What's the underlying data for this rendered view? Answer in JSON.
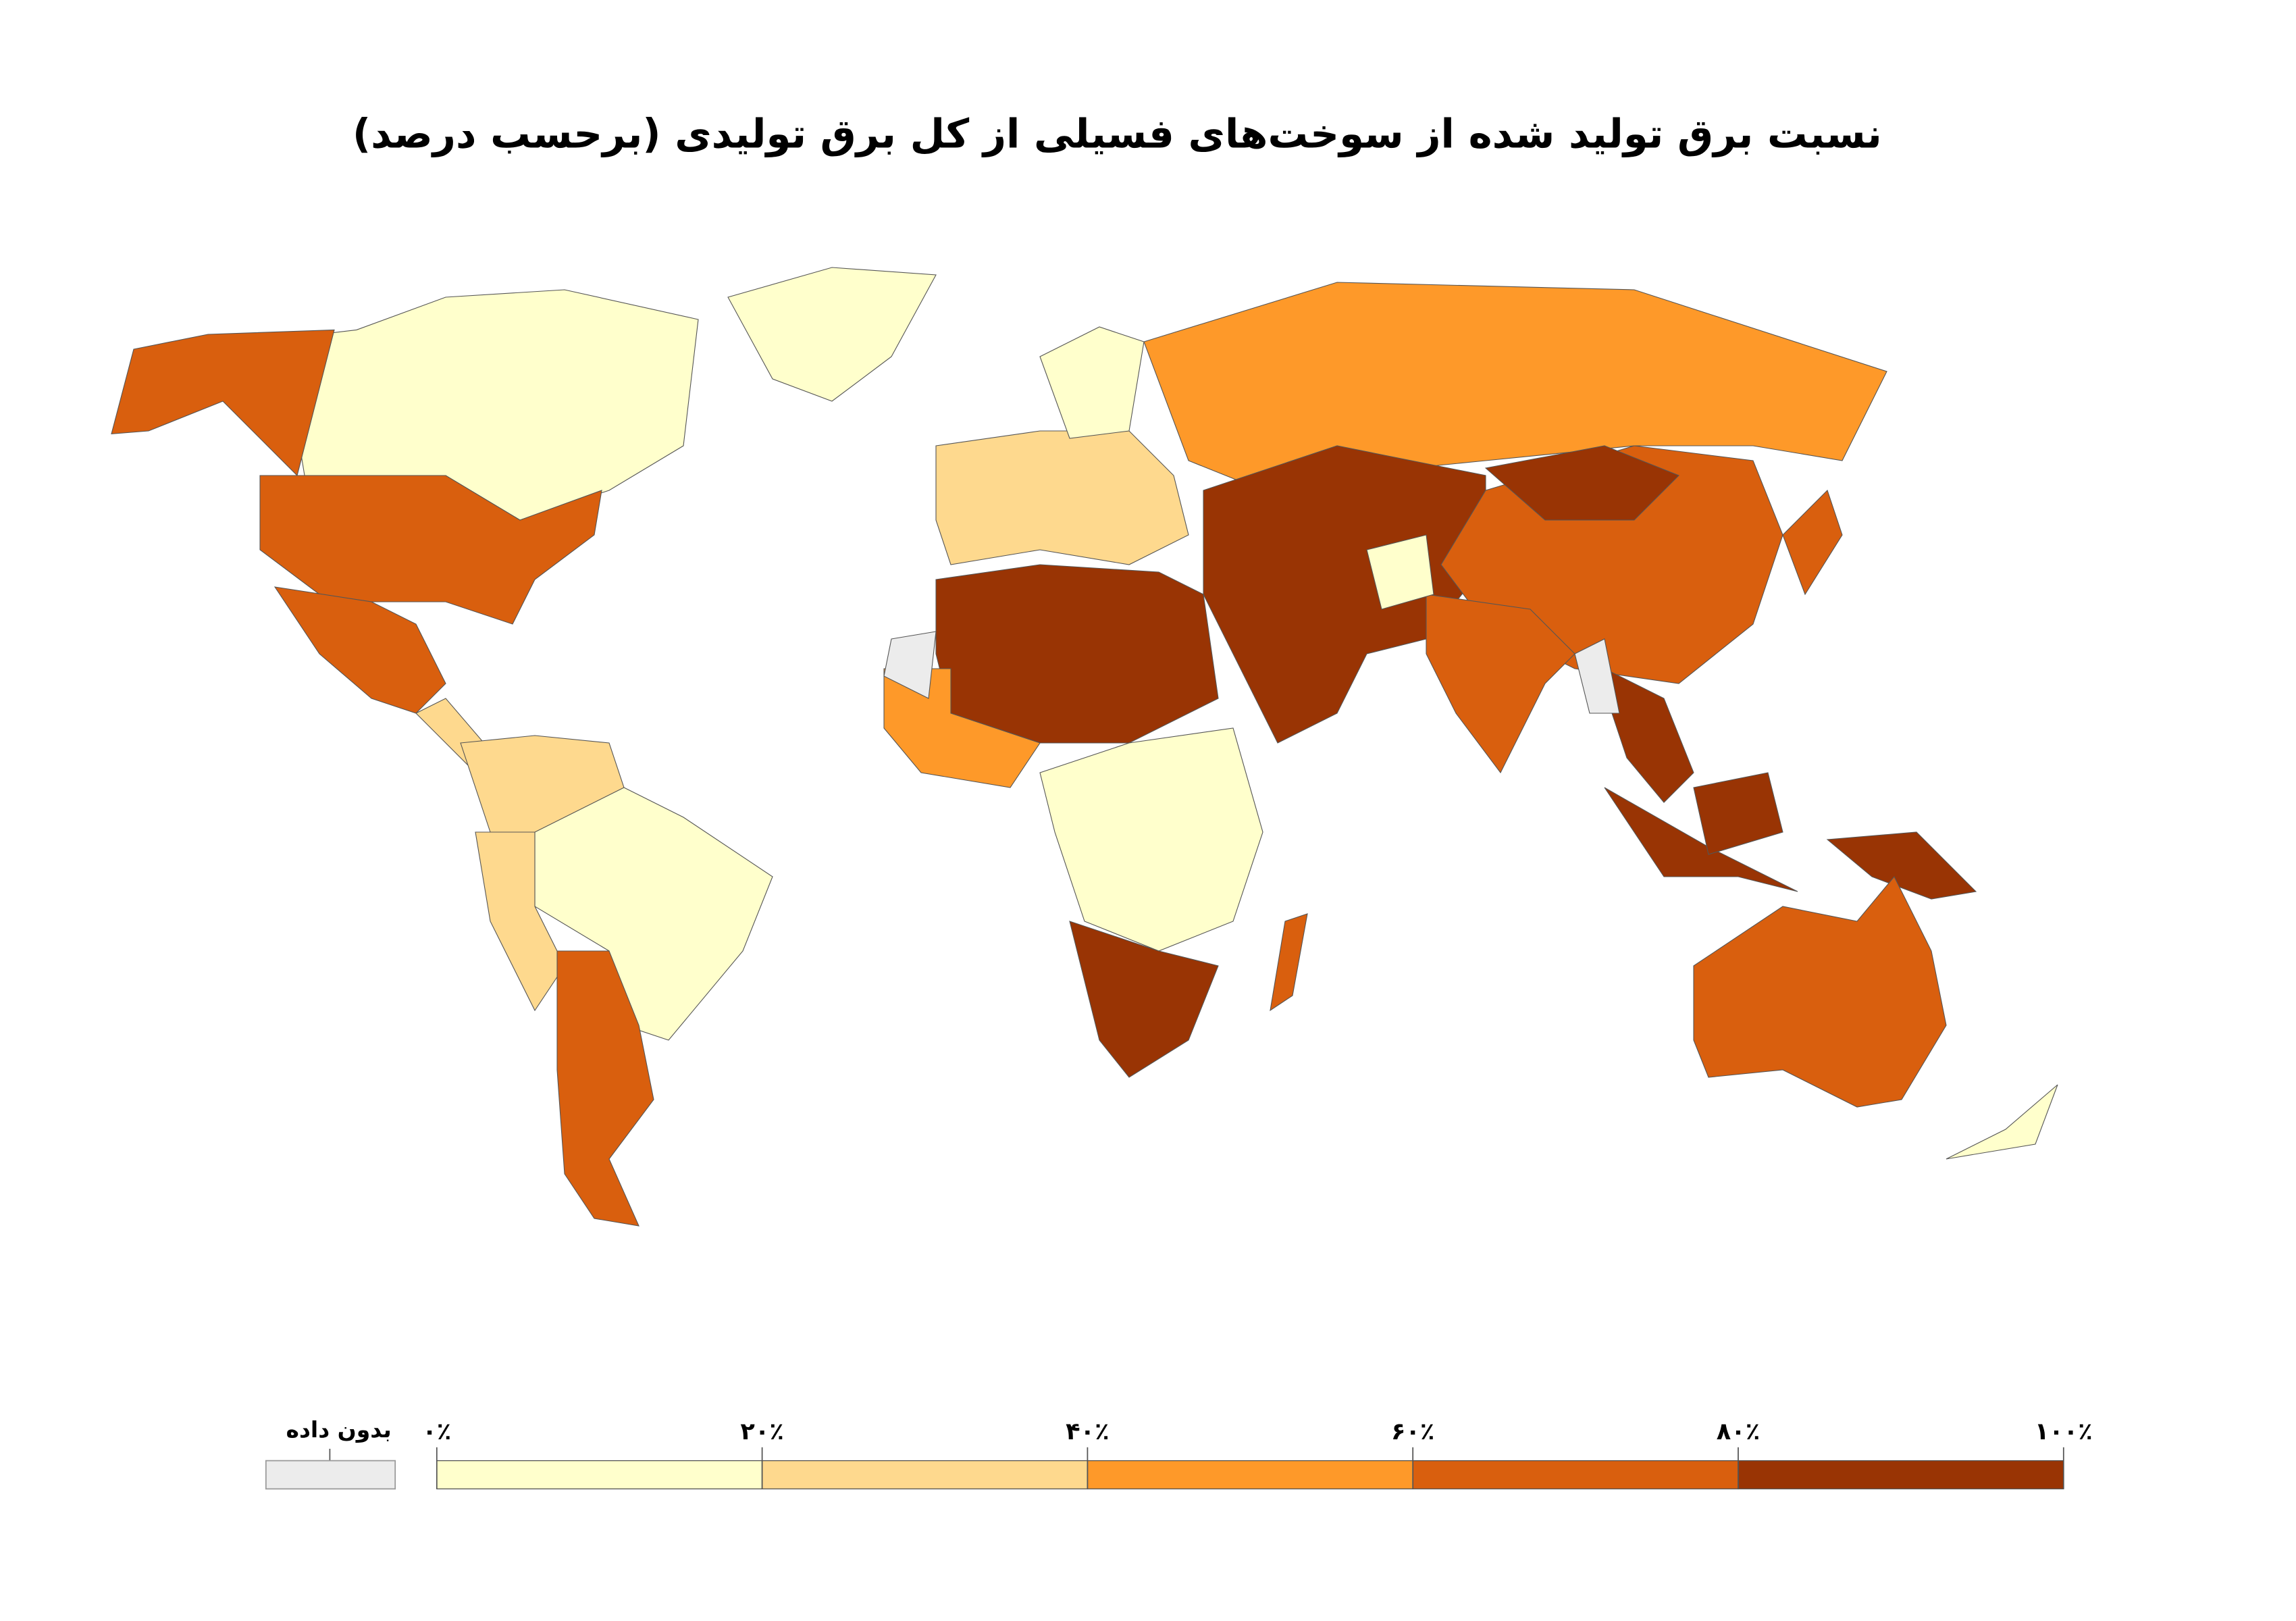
{
  "chart_data": {
    "type": "choropleth",
    "title": "نسبت برق تولید شده از  سوخت‌های فسیلی از کل برق تولیدی (برحسب درصد)",
    "no_data_label": "بدون داده",
    "no_data_color": "#ececec",
    "xlim": [
      0,
      100
    ],
    "xticks": [
      {
        "value": 0,
        "label": "۰٪"
      },
      {
        "value": 20,
        "label": "۲۰٪"
      },
      {
        "value": 40,
        "label": "۴۰٪"
      },
      {
        "value": 60,
        "label": "۶۰٪"
      },
      {
        "value": 80,
        "label": "۸۰٪"
      },
      {
        "value": 100,
        "label": "۱۰۰٪"
      }
    ],
    "colors": [
      "#ffffcc",
      "#fed98e",
      "#fe9929",
      "#d95f0e",
      "#993404"
    ],
    "values": [
      18,
      15,
      65,
      62,
      75,
      35,
      30,
      15,
      35,
      65,
      30,
      5,
      58,
      95,
      55,
      15,
      88,
      60,
      95,
      67,
      92,
      75,
      85,
      85,
      85,
      90,
      75,
      18,
      70,
      15,
      null,
      null
    ]
  }
}
